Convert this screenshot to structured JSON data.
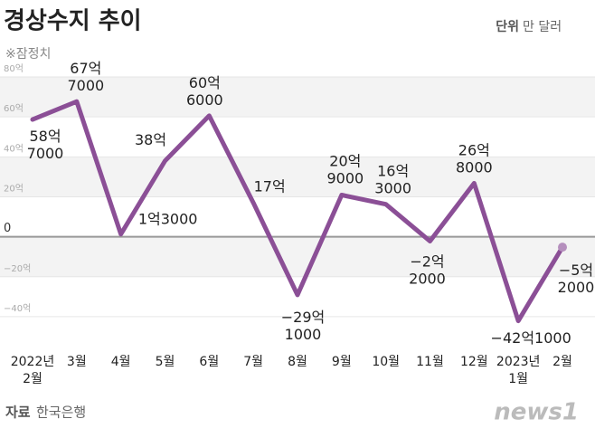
{
  "chart_data": {
    "type": "line",
    "title": "경상수지 추이",
    "subtitle": "※잠정치",
    "unit_label": "단위",
    "unit": "만 달러",
    "source_label": "자료",
    "source": "한국은행",
    "logo": "news1",
    "categories": [
      "2022년\n2월",
      "3월",
      "4월",
      "5월",
      "6월",
      "7월",
      "8월",
      "9월",
      "10월",
      "11월",
      "12월",
      "2023년\n1월",
      "2월"
    ],
    "series": [
      {
        "name": "경상수지",
        "color": "#8b4f96",
        "values": [
          58.7,
          67.7,
          1.3,
          38,
          60.6,
          17,
          -29.1,
          20.9,
          16.3,
          -2.2,
          26.8,
          -42.1,
          -5.2
        ],
        "value_labels": [
          "58억\n7000",
          "67억\n7000",
          "1억3000",
          "38억",
          "60억\n6000",
          "17억",
          "−29억\n1000",
          "20억\n9000",
          "16억\n3000",
          "−2억\n2000",
          "26억\n8000",
          "−42억1000",
          "−5억\n2000"
        ]
      }
    ],
    "ylim": [
      -50,
      85
    ],
    "yticks": [
      {
        "value": 80,
        "label": "80억"
      },
      {
        "value": 60,
        "label": "60억"
      },
      {
        "value": 40,
        "label": "40억"
      },
      {
        "value": 20,
        "label": "20억"
      },
      0,
      {
        "value": -20,
        "label": "−20억"
      },
      {
        "value": -40,
        "label": "−40억"
      }
    ],
    "grid": true
  }
}
